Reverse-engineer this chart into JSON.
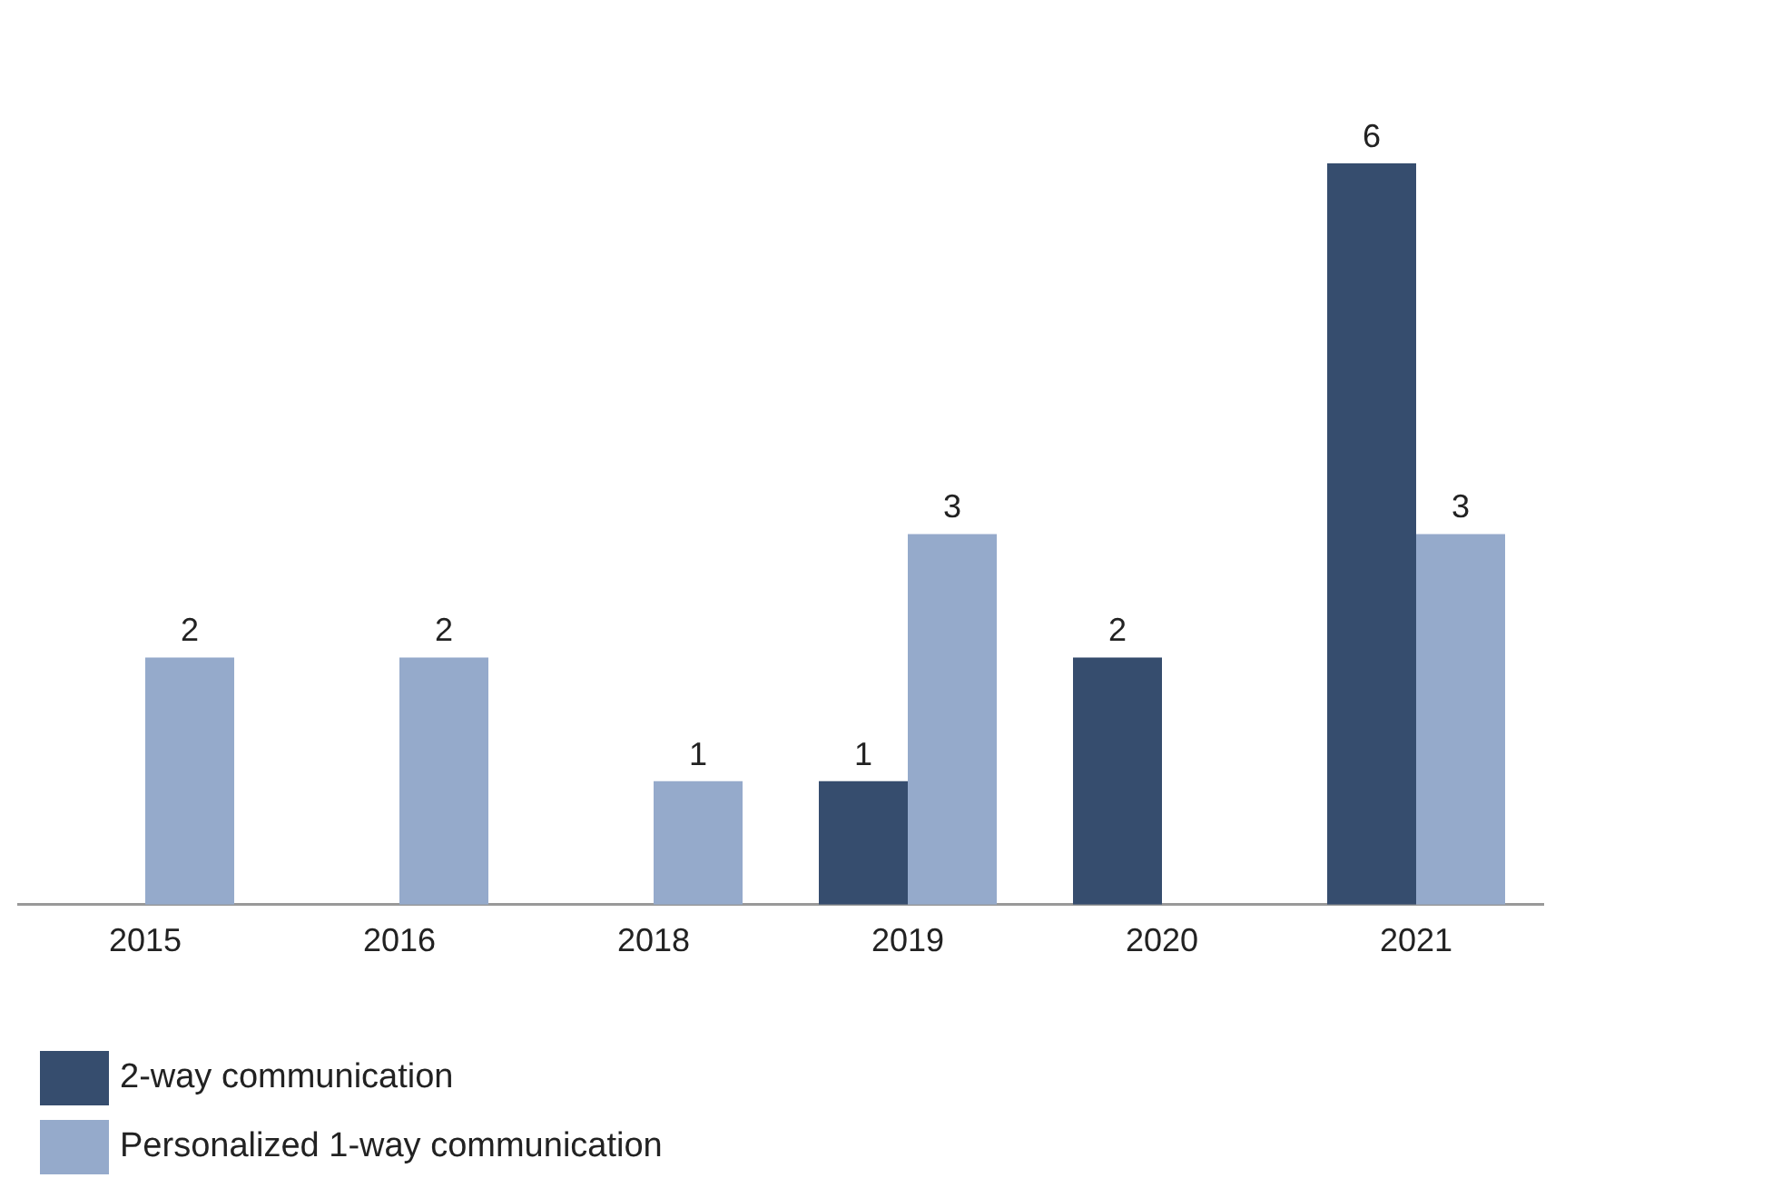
{
  "chart_data": {
    "type": "bar",
    "categories": [
      "2015",
      "2016",
      "2018",
      "2019",
      "2020",
      "2021"
    ],
    "series": [
      {
        "name": "2-way communication",
        "color": "#364d6e",
        "values": [
          null,
          null,
          null,
          1,
          2,
          6
        ]
      },
      {
        "name": "Personalized 1-way communication",
        "color": "#95aacb",
        "values": [
          2,
          2,
          1,
          3,
          null,
          3
        ]
      }
    ],
    "data_labels": true,
    "legend": "bottom left",
    "grid": false
  }
}
